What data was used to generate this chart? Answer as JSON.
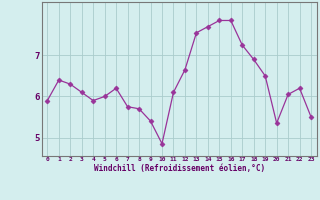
{
  "x": [
    0,
    1,
    2,
    3,
    4,
    5,
    6,
    7,
    8,
    9,
    10,
    11,
    12,
    13,
    14,
    15,
    16,
    17,
    18,
    19,
    20,
    21,
    22,
    23
  ],
  "y": [
    5.9,
    6.4,
    6.3,
    6.1,
    5.9,
    6.0,
    6.2,
    5.75,
    5.7,
    5.4,
    4.85,
    6.1,
    6.65,
    7.55,
    7.7,
    7.85,
    7.85,
    7.25,
    6.9,
    6.5,
    5.35,
    6.05,
    6.2,
    5.5
  ],
  "line_color": "#993399",
  "marker": "D",
  "marker_size": 2.5,
  "bg_color": "#d4eeee",
  "grid_color": "#aacccc",
  "xlabel": "Windchill (Refroidissement éolien,°C)",
  "xlabel_color": "#660066",
  "tick_color": "#660066",
  "yticks": [
    5,
    6,
    7
  ],
  "ylim": [
    4.55,
    8.3
  ],
  "xlim": [
    -0.5,
    23.5
  ],
  "xticks": [
    0,
    1,
    2,
    3,
    4,
    5,
    6,
    7,
    8,
    9,
    10,
    11,
    12,
    13,
    14,
    15,
    16,
    17,
    18,
    19,
    20,
    21,
    22,
    23
  ]
}
